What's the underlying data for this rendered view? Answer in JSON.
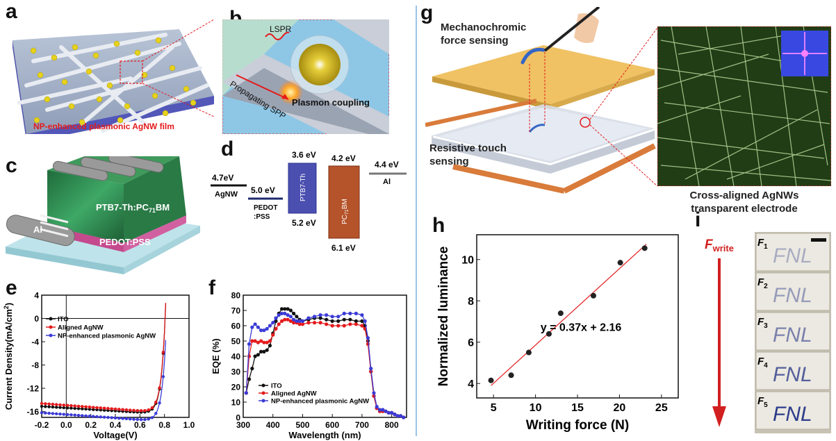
{
  "panel_labels": {
    "a": "a",
    "b": "b",
    "c": "c",
    "d": "d",
    "e": "e",
    "f": "f",
    "g": "g",
    "h": "h",
    "i": "i"
  },
  "panel_a": {
    "caption": "NP-enhanced plasmonic AgNW film"
  },
  "panel_b": {
    "lspr": "LSPR",
    "propagating": "Propagating SPP",
    "coupling": "Plasmon coupling"
  },
  "panel_c": {
    "active": "PTB7-Th:PC",
    "active_sub": "71",
    "active_end": "BM",
    "pedot": "PEDOT:PSS",
    "al": "Al"
  },
  "panel_d": {
    "agnw_e": "4.7eV",
    "agnw": "AgNW",
    "pedot_e": "5.0 eV",
    "pedot1": "PEDOT",
    "pedot2": ":PSS",
    "ptb_top": "3.6 eV",
    "ptb_bot": "5.2 eV",
    "ptb": "PTB7-Th",
    "pc_top": "4.2 eV",
    "pc_bot": "6.1 eV",
    "pc": "PC",
    "pc_sub": "71",
    "pc_end": "BM",
    "al_e": "4.4 eV",
    "al": "Al"
  },
  "panel_g": {
    "mechano1": "Mechanochromic",
    "mechano2": "force sensing",
    "resist1": "Resistive touch",
    "resist2": "sensing",
    "cross1": "Cross-aligned AgNWs",
    "cross2": "transparent electrode"
  },
  "panel_i": {
    "fwrite": "F",
    "fwrite_sub": "write",
    "rows": [
      {
        "f": "F",
        "sub": "1",
        "text": "FNL",
        "alpha": 0.35
      },
      {
        "f": "F",
        "sub": "2",
        "text": "FNL",
        "alpha": 0.45
      },
      {
        "f": "F",
        "sub": "3",
        "text": "FNL",
        "alpha": 0.6
      },
      {
        "f": "F",
        "sub": "4",
        "text": "FNL",
        "alpha": 0.8
      },
      {
        "f": "F",
        "sub": "5",
        "text": "FNL",
        "alpha": 1.0
      }
    ]
  },
  "chart_data": [
    {
      "id": "e",
      "type": "line",
      "xlabel": "Voltage(V)",
      "ylabel": "Current Density(mA/cm2)",
      "ylabel_main": "Current Density(mA/cm",
      "ylabel_sup": "2",
      "ylabel_end": ")",
      "xlim": [
        -0.2,
        1.0
      ],
      "ylim": [
        -17,
        4
      ],
      "xticks": [
        "-0.2",
        "0.0",
        "0.2",
        "0.4",
        "0.6",
        "0.8",
        "1.0"
      ],
      "xtick_values": [
        -0.2,
        0.0,
        0.2,
        0.4,
        0.6,
        0.8,
        1.0
      ],
      "yticks": [
        "4",
        "0",
        "-4",
        "-8",
        "-12",
        "-16"
      ],
      "ytick_values": [
        4,
        0,
        -4,
        -8,
        -12,
        -16
      ],
      "series": [
        {
          "name": "ITO",
          "color": "#111111",
          "jsc": -15.1,
          "slope": -1.3,
          "voc": 0.8
        },
        {
          "name": "Aligned AgNW",
          "color": "#e41a1c",
          "jsc": -14.6,
          "slope": -1.6,
          "voc": 0.8
        },
        {
          "name": "NP-enhanced plasmonic AgNW",
          "color": "#3b3bd6",
          "jsc": -16.2,
          "slope": -1.5,
          "voc": 0.81
        }
      ]
    },
    {
      "id": "f",
      "type": "line",
      "xlabel": "Wavelength (nm)",
      "ylabel": "EQE (%)",
      "xlim": [
        300,
        850
      ],
      "ylim": [
        0,
        80
      ],
      "xticks": [
        "300",
        "400",
        "500",
        "600",
        "700",
        "800"
      ],
      "xtick_values": [
        300,
        400,
        500,
        600,
        700,
        800
      ],
      "yticks": [
        "0",
        "10",
        "20",
        "30",
        "40",
        "50",
        "60",
        "70",
        "80"
      ],
      "ytick_values": [
        0,
        10,
        20,
        30,
        40,
        50,
        60,
        70,
        80
      ],
      "x": [
        310,
        320,
        330,
        340,
        350,
        360,
        370,
        380,
        390,
        400,
        410,
        420,
        430,
        440,
        450,
        460,
        470,
        480,
        490,
        500,
        520,
        540,
        560,
        580,
        600,
        620,
        640,
        660,
        680,
        700,
        710,
        720,
        730,
        740,
        750,
        760,
        770,
        780,
        790,
        800,
        810,
        820,
        830,
        840
      ],
      "series": [
        {
          "name": "ITO",
          "color": "#111111",
          "values": [
            16,
            25,
            32,
            40,
            41,
            43,
            43,
            44,
            47,
            55,
            63,
            68,
            71,
            71,
            71,
            70,
            68,
            66,
            64,
            63,
            64,
            65,
            65,
            64,
            63,
            63,
            64,
            64,
            63,
            63,
            60,
            50,
            30,
            14,
            6,
            4,
            4,
            4,
            3,
            3,
            2,
            1,
            1,
            0
          ]
        },
        {
          "name": "Aligned AgNW",
          "color": "#e41a1c",
          "values": [
            16,
            40,
            50,
            50,
            49,
            50,
            49,
            49,
            50,
            54,
            58,
            61,
            63,
            64,
            64,
            63,
            62,
            62,
            61,
            61,
            62,
            62,
            62,
            61,
            60,
            60,
            60,
            61,
            61,
            60,
            58,
            48,
            30,
            14,
            6,
            4,
            4,
            4,
            3,
            3,
            2,
            1,
            1,
            0
          ]
        },
        {
          "name": "NP-enhanced plasmonic AgNW",
          "color": "#3b3bd6",
          "values": [
            16,
            48,
            59,
            61,
            59,
            57,
            57,
            58,
            60,
            62,
            65,
            67,
            68,
            68,
            67,
            66,
            64,
            63,
            63,
            63,
            65,
            66,
            67,
            67,
            66,
            66,
            68,
            68,
            68,
            67,
            63,
            52,
            32,
            16,
            7,
            5,
            5,
            4,
            3,
            3,
            2,
            1,
            1,
            0
          ]
        }
      ]
    },
    {
      "id": "h",
      "type": "scatter",
      "xlabel": "Writing force (N)",
      "ylabel": "Normalized luminance",
      "xlim": [
        3,
        27
      ],
      "ylim": [
        3.3,
        11.2
      ],
      "xticks": [
        "5",
        "10",
        "15",
        "20",
        "25"
      ],
      "xtick_values": [
        5,
        10,
        15,
        20,
        25
      ],
      "yticks": [
        "4",
        "6",
        "8",
        "10"
      ],
      "ytick_values": [
        4,
        6,
        8,
        10
      ],
      "x": [
        4.7,
        7.1,
        9.2,
        11.6,
        13.0,
        16.9,
        20.1,
        23.0
      ],
      "y": [
        4.15,
        4.4,
        5.5,
        6.4,
        7.4,
        8.25,
        9.85,
        10.55
      ],
      "fit": {
        "slope": 0.37,
        "intercept": 2.16,
        "label": "y = 0.37x + 2.16"
      }
    }
  ]
}
